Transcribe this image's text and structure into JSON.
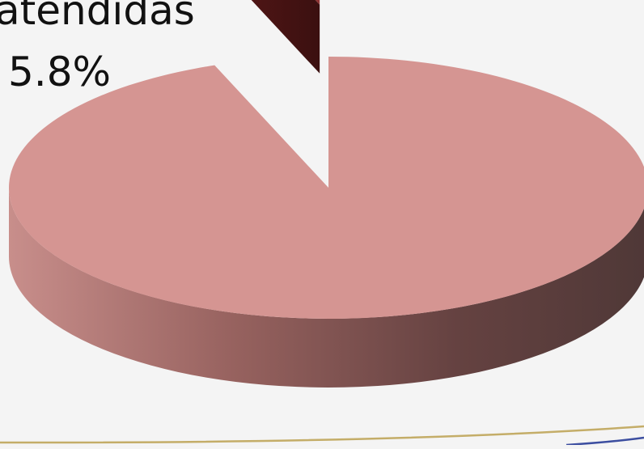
{
  "chart_data": {
    "type": "pie",
    "style": "3d-exploded",
    "slices": [
      {
        "label": "atendidas",
        "value": 5.8,
        "display": "5.8%",
        "color": "#8f3333",
        "exploded": true
      },
      {
        "label": "",
        "value": 94.2,
        "color": "#d59592",
        "exploded": false
      }
    ],
    "visible_label": {
      "category": "atendidas",
      "percent": "5.8%"
    },
    "legend": "none"
  }
}
